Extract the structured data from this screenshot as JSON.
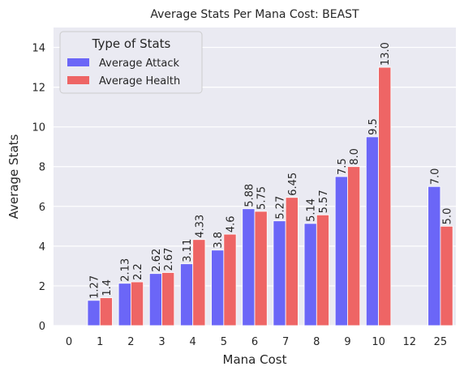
{
  "chart_data": {
    "type": "bar",
    "title": "Average Stats Per Mana Cost: BEAST",
    "xlabel": "Mana Cost",
    "ylabel": "Average Stats",
    "categories": [
      "0",
      "1",
      "2",
      "3",
      "4",
      "5",
      "6",
      "7",
      "8",
      "9",
      "10",
      "12",
      "25"
    ],
    "ylim": [
      0,
      15
    ],
    "yticks": [
      0,
      2,
      4,
      6,
      8,
      10,
      12,
      14
    ],
    "grid": true,
    "legend": {
      "title": "Type of Stats",
      "placement": "top-left"
    },
    "series": [
      {
        "name": "Average Attack",
        "color": "#6b66f7",
        "values": [
          null,
          1.27,
          2.13,
          2.62,
          3.11,
          3.8,
          5.88,
          5.27,
          5.14,
          7.5,
          9.5,
          null,
          7.0
        ],
        "labels": [
          null,
          "1.27",
          "2.13",
          "2.62",
          "3.11",
          "3.8",
          "5.88",
          "5.27",
          "5.14",
          "7.5",
          "9.5",
          null,
          "7.0"
        ]
      },
      {
        "name": "Average Health",
        "color": "#ee6565",
        "values": [
          null,
          1.4,
          2.2,
          2.67,
          4.33,
          4.6,
          5.75,
          6.45,
          5.57,
          8.0,
          13.0,
          null,
          5.0
        ],
        "labels": [
          null,
          "1.4",
          "2.2",
          "2.67",
          "4.33",
          "4.6",
          "5.75",
          "6.45",
          "5.57",
          "8.0",
          "13.0",
          null,
          "5.0"
        ]
      }
    ]
  }
}
